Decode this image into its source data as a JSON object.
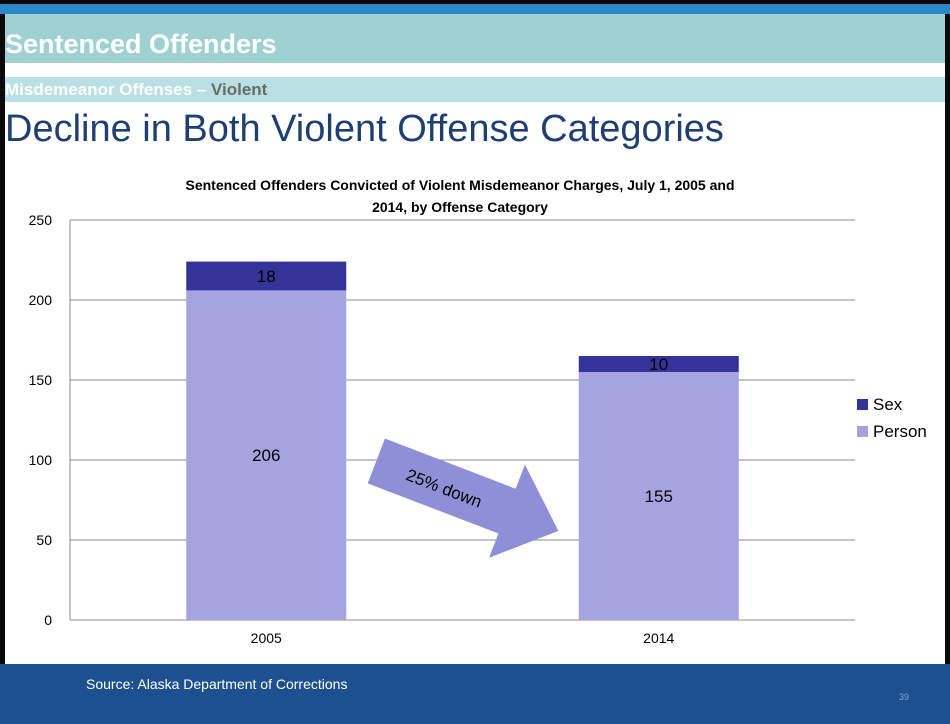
{
  "header": {
    "title": "Sentenced Offenders",
    "subtitle_main": "Misdemeanor Offenses –",
    "subtitle_accent": "Violent",
    "headline": "Decline in Both Violent Offense Categories"
  },
  "chart_data": {
    "type": "bar",
    "stacked": true,
    "title": "Sentenced Offenders Convicted of Violent Misdemeanor Charges, July 1, 2005 and 2014, by Offense Category",
    "title_lines": [
      "Sentenced Offenders Convicted of Violent Misdemeanor Charges, July 1, 2005 and",
      "2014, by Offense Category"
    ],
    "categories": [
      "2005",
      "2014"
    ],
    "series": [
      {
        "name": "Person",
        "values": [
          206,
          155
        ],
        "color": "#a4a4e0"
      },
      {
        "name": "Sex",
        "values": [
          18,
          10
        ],
        "color": "#333399"
      }
    ],
    "ylim": [
      0,
      250
    ],
    "yticks": [
      0,
      50,
      100,
      150,
      200,
      250
    ],
    "grid": true,
    "legend": "right",
    "annotation": "25% down",
    "annotation_color": "#8f8fd8"
  },
  "footer": {
    "source": "Source: Alaska Department of Corrections",
    "page_number": "39"
  }
}
